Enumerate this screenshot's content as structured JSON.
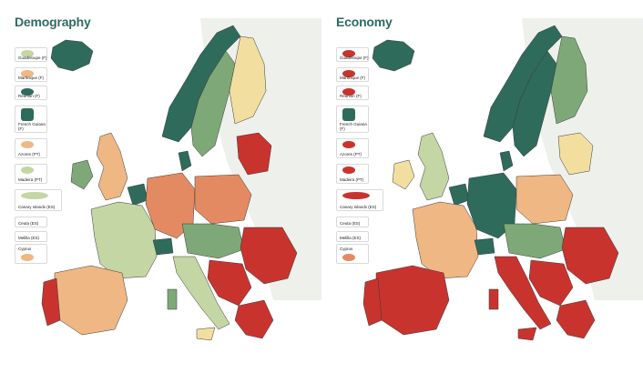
{
  "colors": {
    "sea": "#ffffff",
    "background_land": "#eef0ec",
    "dark_green": "#2e6b5b",
    "mid_green": "#7ea878",
    "light_green": "#c3d6a4",
    "pale_yellow": "#f2dfa0",
    "light_orange": "#efb783",
    "orange": "#e48a62",
    "red": "#c9332e",
    "title": "#2f6b66",
    "border": "#3a3a3a"
  },
  "panels": [
    {
      "title": "Demography",
      "insets": [
        {
          "label": "Guadeloupe (F)",
          "color": "#c3d6a4"
        },
        {
          "label": "Martinique (F)",
          "color": "#efb783"
        },
        {
          "label": "Réunion (F)",
          "color": "#2e6b5b"
        },
        {
          "label": "French Guiana (F)",
          "color": "#2e6b5b"
        },
        {
          "label": "Azores (PT)",
          "color": "#efb783"
        },
        {
          "label": "Madeira (PT)",
          "color": "#c3d6a4"
        },
        {
          "label": "Canary Islands (ES)",
          "color": "#c3d6a4"
        },
        {
          "label": "Ceuta (ES)",
          "color": "#f2dfa0"
        },
        {
          "label": "Melilla (ES)",
          "color": "#c3d6a4"
        },
        {
          "label": "Cyprus",
          "color": "#efb783"
        }
      ]
    },
    {
      "title": "Economy",
      "insets": [
        {
          "label": "Guadeloupe (F)",
          "color": "#c9332e"
        },
        {
          "label": "Martinique (F)",
          "color": "#c9332e"
        },
        {
          "label": "Réunion (F)",
          "color": "#c9332e"
        },
        {
          "label": "French Guiana (F)",
          "color": "#2e6b5b"
        },
        {
          "label": "Azores (PT)",
          "color": "#c9332e"
        },
        {
          "label": "Madeira (PT)",
          "color": "#c9332e"
        },
        {
          "label": "Canary Islands (ES)",
          "color": "#c9332e"
        },
        {
          "label": "Ceuta (ES)",
          "color": "#c9332e"
        },
        {
          "label": "Melilla (ES)",
          "color": "#c9332e"
        },
        {
          "label": "Cyprus",
          "color": "#e48a62"
        }
      ]
    }
  ]
}
